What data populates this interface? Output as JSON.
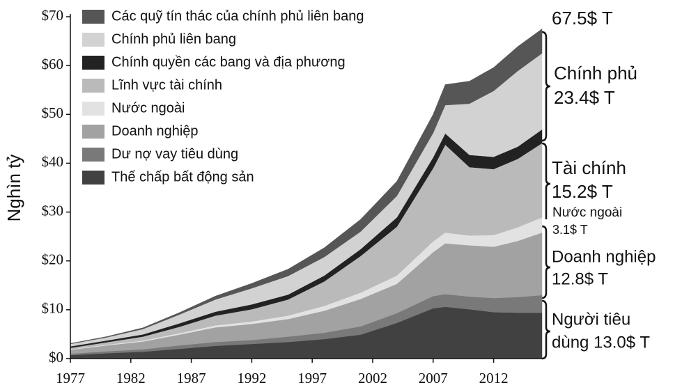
{
  "chart_data": {
    "type": "stacked-area",
    "y_label": "Nghìn tỷ",
    "x": [
      1977,
      1980,
      1983,
      1986,
      1989,
      1992,
      1995,
      1998,
      2001,
      2004,
      2007,
      2008,
      2010,
      2012,
      2014,
      2016
    ],
    "xlim": [
      1977,
      2016
    ],
    "xticks": [
      1977,
      1982,
      1987,
      1992,
      1997,
      2002,
      2007,
      2012
    ],
    "ylim": [
      0,
      70
    ],
    "yticks": [
      {
        "value": 0,
        "label": "$0"
      },
      {
        "value": 10,
        "label": "$10"
      },
      {
        "value": 20,
        "label": "$20"
      },
      {
        "value": 30,
        "label": "$30"
      },
      {
        "value": 40,
        "label": "$40"
      },
      {
        "value": 50,
        "label": "$50"
      },
      {
        "value": 60,
        "label": "$60"
      },
      {
        "value": 70,
        "label": "$70"
      }
    ],
    "series": [
      {
        "name": "Thế chấp bất động sản",
        "color": "#414141",
        "values": [
          0.7,
          1.1,
          1.4,
          2.0,
          2.6,
          3.0,
          3.4,
          4.0,
          4.9,
          7.3,
          10.3,
          10.6,
          10.1,
          9.5,
          9.4,
          9.4
        ]
      },
      {
        "name": "Dư nợ vay tiêu dùng",
        "color": "#797979",
        "values": [
          0.3,
          0.4,
          0.5,
          0.7,
          0.8,
          0.8,
          1.1,
          1.3,
          1.7,
          2.0,
          2.5,
          2.6,
          2.6,
          2.9,
          3.2,
          3.6
        ]
      },
      {
        "name": "Doanh nghiệp",
        "color": "#a2a2a2",
        "values": [
          0.8,
          1.2,
          1.6,
          2.2,
          3.0,
          3.3,
          3.6,
          4.5,
          5.6,
          6.0,
          9.0,
          10.4,
          10.5,
          10.5,
          11.5,
          12.8
        ]
      },
      {
        "name": "Nước ngoài",
        "color": "#e2e2e2",
        "values": [
          0.1,
          0.15,
          0.2,
          0.3,
          0.4,
          0.5,
          0.7,
          1.0,
          1.3,
          1.7,
          2.2,
          2.2,
          2.0,
          2.4,
          2.8,
          3.1
        ]
      },
      {
        "name": "Lĩnh vực tài chính",
        "color": "#bababa",
        "values": [
          0.3,
          0.5,
          0.8,
          1.3,
          2.0,
          2.5,
          3.3,
          5.0,
          7.5,
          10.0,
          15.0,
          18.0,
          14.0,
          13.5,
          14.0,
          15.2
        ]
      },
      {
        "name": "Chính quyền các bang và địa phương",
        "color": "#222222",
        "values": [
          0.3,
          0.35,
          0.45,
          0.7,
          0.8,
          1.0,
          1.0,
          1.2,
          1.4,
          1.9,
          2.2,
          2.3,
          2.5,
          2.5,
          2.5,
          2.8
        ]
      },
      {
        "name": "Chính phủ liên bang",
        "color": "#d2d2d2",
        "values": [
          0.5,
          0.65,
          1.1,
          1.8,
          2.5,
          3.3,
          3.8,
          3.8,
          3.6,
          4.4,
          5.0,
          5.8,
          10.5,
          13.5,
          15.5,
          15.6
        ]
      },
      {
        "name": "Các quỹ tín thác của chính phủ liên bang",
        "color": "#565656",
        "values": [
          0.1,
          0.15,
          0.25,
          0.4,
          0.7,
          1.0,
          1.4,
          1.9,
          2.5,
          3.0,
          3.8,
          4.2,
          4.6,
          4.8,
          5.0,
          5.0
        ]
      }
    ],
    "annotations": [
      [
        "67.5$ T"
      ],
      [
        "Chính phủ",
        "23.4$ T"
      ],
      [
        "Tài chính",
        "15.2$ T"
      ],
      [
        "Nước ngoài",
        "3.1$ T"
      ],
      [
        "Doanh nghiệp",
        "12.8$ T"
      ],
      [
        "Người tiêu",
        "dùng 13.0$ T"
      ]
    ]
  }
}
